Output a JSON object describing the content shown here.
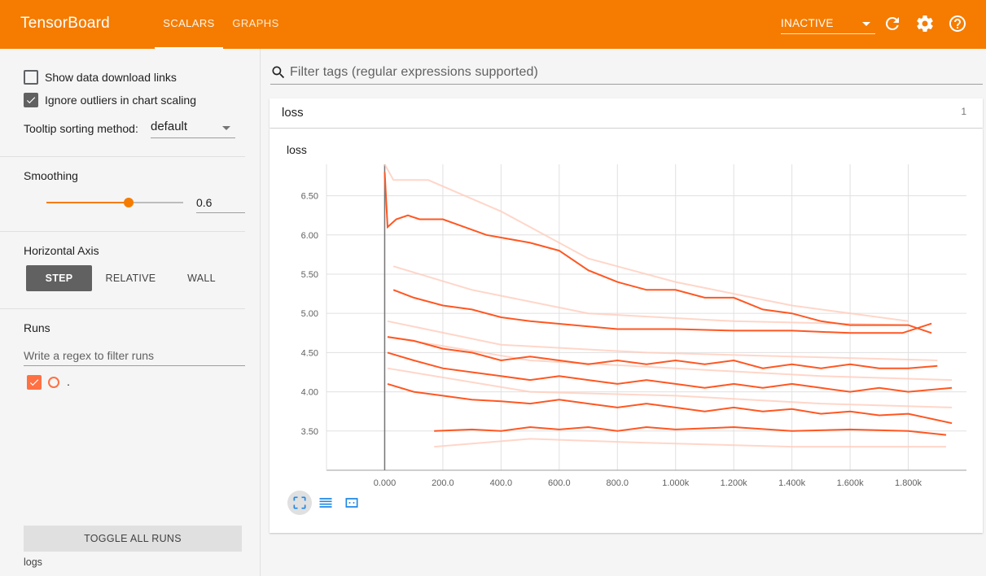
{
  "header": {
    "title": "TensorBoard",
    "tabs": [
      {
        "label": "SCALARS",
        "active": true
      },
      {
        "label": "GRAPHS",
        "active": false
      }
    ],
    "status_select": "INACTIVE",
    "icons": [
      "refresh-icon",
      "settings-icon",
      "help-icon"
    ],
    "accent_color": "#f57c00"
  },
  "sidebar": {
    "show_download_links": {
      "label": "Show data download links",
      "checked": false
    },
    "ignore_outliers": {
      "label": "Ignore outliers in chart scaling",
      "checked": true
    },
    "tooltip_sorting": {
      "label": "Tooltip sorting method:",
      "value": "default"
    },
    "smoothing": {
      "title": "Smoothing",
      "value": "0.6",
      "fraction": 0.6
    },
    "horizontal_axis": {
      "title": "Horizontal Axis",
      "options": [
        "STEP",
        "RELATIVE",
        "WALL"
      ],
      "selected": "STEP"
    },
    "runs": {
      "title": "Runs",
      "filter_placeholder": "Write a regex to filter runs",
      "items": [
        {
          "label": ".",
          "checked": true,
          "color": "#ff7043"
        }
      ]
    },
    "toggle_all_label": "TOGGLE ALL RUNS",
    "logdir": "logs"
  },
  "main": {
    "filter_placeholder": "Filter tags (regular expressions supported)",
    "category": {
      "name": "loss",
      "count": "1"
    },
    "card_title": "loss",
    "chart_buttons": [
      "fit-domain-icon",
      "log-scale-icon",
      "selection-zoom-icon"
    ]
  },
  "chart_data": {
    "type": "line",
    "title": "loss",
    "xlabel": "",
    "ylabel": "",
    "x_ticks": [
      "0.000",
      "200.0",
      "400.0",
      "600.0",
      "800.0",
      "1.000k",
      "1.200k",
      "1.400k",
      "1.600k",
      "1.800k"
    ],
    "y_ticks": [
      "3.50",
      "4.00",
      "4.50",
      "5.00",
      "5.50",
      "6.00",
      "6.50"
    ],
    "xlim": [
      -200,
      2000
    ],
    "ylim": [
      3.0,
      6.9
    ],
    "grid": true,
    "smoothed_color": "#ff5722",
    "raw_color": "#ffccbc",
    "series": [
      {
        "smoothed": [
          [
            0,
            6.8
          ],
          [
            10,
            6.1
          ],
          [
            40,
            6.2
          ],
          [
            80,
            6.25
          ],
          [
            120,
            6.2
          ],
          [
            200,
            6.2
          ],
          [
            350,
            6.0
          ],
          [
            500,
            5.9
          ],
          [
            600,
            5.8
          ],
          [
            700,
            5.55
          ],
          [
            800,
            5.4
          ],
          [
            900,
            5.3
          ],
          [
            1000,
            5.3
          ],
          [
            1100,
            5.2
          ],
          [
            1200,
            5.2
          ],
          [
            1300,
            5.05
          ],
          [
            1400,
            5.0
          ],
          [
            1500,
            4.9
          ],
          [
            1600,
            4.85
          ],
          [
            1700,
            4.85
          ],
          [
            1800,
            4.85
          ],
          [
            1880,
            4.75
          ]
        ],
        "raw": [
          [
            0,
            7.5
          ],
          [
            30,
            6.7
          ],
          [
            150,
            6.7
          ],
          [
            400,
            6.3
          ],
          [
            700,
            5.7
          ],
          [
            1000,
            5.4
          ],
          [
            1400,
            5.1
          ],
          [
            1800,
            4.9
          ]
        ]
      },
      {
        "smoothed": [
          [
            30,
            5.3
          ],
          [
            100,
            5.2
          ],
          [
            200,
            5.1
          ],
          [
            300,
            5.05
          ],
          [
            400,
            4.95
          ],
          [
            500,
            4.9
          ],
          [
            650,
            4.85
          ],
          [
            800,
            4.8
          ],
          [
            1000,
            4.8
          ],
          [
            1200,
            4.78
          ],
          [
            1400,
            4.78
          ],
          [
            1600,
            4.75
          ],
          [
            1780,
            4.75
          ],
          [
            1880,
            4.87
          ]
        ],
        "raw": [
          [
            30,
            5.6
          ],
          [
            300,
            5.3
          ],
          [
            700,
            5.0
          ],
          [
            1200,
            4.9
          ],
          [
            1800,
            4.85
          ]
        ]
      },
      {
        "smoothed": [
          [
            10,
            4.7
          ],
          [
            100,
            4.65
          ],
          [
            200,
            4.55
          ],
          [
            300,
            4.5
          ],
          [
            400,
            4.4
          ],
          [
            500,
            4.45
          ],
          [
            600,
            4.4
          ],
          [
            700,
            4.35
          ],
          [
            800,
            4.4
          ],
          [
            900,
            4.35
          ],
          [
            1000,
            4.4
          ],
          [
            1100,
            4.35
          ],
          [
            1200,
            4.4
          ],
          [
            1300,
            4.3
          ],
          [
            1400,
            4.35
          ],
          [
            1500,
            4.3
          ],
          [
            1600,
            4.35
          ],
          [
            1700,
            4.3
          ],
          [
            1800,
            4.3
          ],
          [
            1900,
            4.33
          ]
        ],
        "raw": [
          [
            10,
            4.9
          ],
          [
            400,
            4.6
          ],
          [
            900,
            4.5
          ],
          [
            1400,
            4.45
          ],
          [
            1900,
            4.4
          ]
        ]
      },
      {
        "smoothed": [
          [
            10,
            4.5
          ],
          [
            100,
            4.4
          ],
          [
            200,
            4.3
          ],
          [
            300,
            4.25
          ],
          [
            400,
            4.2
          ],
          [
            500,
            4.15
          ],
          [
            600,
            4.2
          ],
          [
            700,
            4.15
          ],
          [
            800,
            4.1
          ],
          [
            900,
            4.15
          ],
          [
            1000,
            4.1
          ],
          [
            1100,
            4.05
          ],
          [
            1200,
            4.1
          ],
          [
            1300,
            4.05
          ],
          [
            1400,
            4.1
          ],
          [
            1500,
            4.05
          ],
          [
            1600,
            4.0
          ],
          [
            1700,
            4.05
          ],
          [
            1800,
            4.0
          ],
          [
            1950,
            4.05
          ]
        ],
        "raw": [
          [
            10,
            4.7
          ],
          [
            500,
            4.4
          ],
          [
            1000,
            4.3
          ],
          [
            1500,
            4.2
          ],
          [
            1950,
            4.15
          ]
        ]
      },
      {
        "smoothed": [
          [
            10,
            4.1
          ],
          [
            100,
            4.0
          ],
          [
            200,
            3.95
          ],
          [
            300,
            3.9
          ],
          [
            400,
            3.88
          ],
          [
            500,
            3.85
          ],
          [
            600,
            3.9
          ],
          [
            700,
            3.85
          ],
          [
            800,
            3.8
          ],
          [
            900,
            3.85
          ],
          [
            1000,
            3.8
          ],
          [
            1100,
            3.75
          ],
          [
            1200,
            3.8
          ],
          [
            1300,
            3.75
          ],
          [
            1400,
            3.78
          ],
          [
            1500,
            3.72
          ],
          [
            1600,
            3.75
          ],
          [
            1700,
            3.7
          ],
          [
            1800,
            3.72
          ],
          [
            1950,
            3.6
          ]
        ],
        "raw": [
          [
            10,
            4.3
          ],
          [
            500,
            4.0
          ],
          [
            1000,
            3.95
          ],
          [
            1500,
            3.85
          ],
          [
            1950,
            3.8
          ]
        ]
      },
      {
        "smoothed": [
          [
            170,
            3.5
          ],
          [
            300,
            3.52
          ],
          [
            400,
            3.5
          ],
          [
            500,
            3.55
          ],
          [
            600,
            3.52
          ],
          [
            700,
            3.55
          ],
          [
            800,
            3.5
          ],
          [
            900,
            3.55
          ],
          [
            1000,
            3.52
          ],
          [
            1200,
            3.55
          ],
          [
            1400,
            3.5
          ],
          [
            1600,
            3.52
          ],
          [
            1800,
            3.5
          ],
          [
            1930,
            3.45
          ]
        ],
        "raw": [
          [
            170,
            3.3
          ],
          [
            500,
            3.4
          ],
          [
            900,
            3.35
          ],
          [
            1400,
            3.3
          ],
          [
            1930,
            3.3
          ]
        ]
      }
    ]
  }
}
